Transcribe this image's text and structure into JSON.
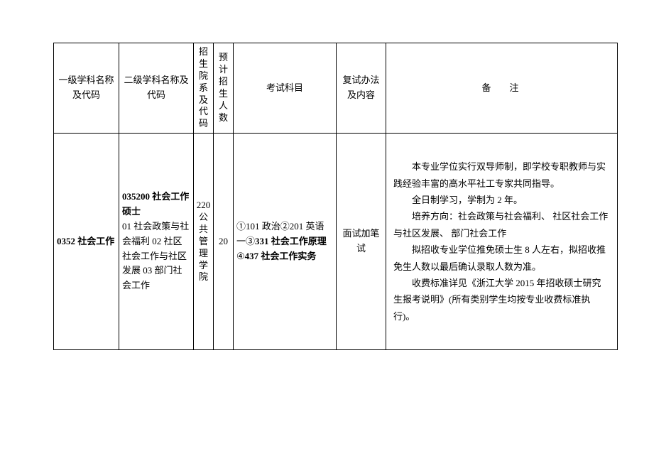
{
  "table": {
    "headers": {
      "col1": "一级学科名称及代码",
      "col2": "二级学科名称及代码",
      "col3": "招生院系及代码",
      "col4": "预计招生人数",
      "col5": "考试科目",
      "col6": "复试办法及内容",
      "col7": "备注"
    },
    "row": {
      "discipline_l1_code": "0352",
      "discipline_l1_name": "社会工作",
      "discipline_l2_code": "035200",
      "discipline_l2_name": "社会工作硕士",
      "discipline_l2_directions": "01 社会政策与社会福利 02 社区社会工作与社区发展 03 部门社会工作",
      "dept_code": "220",
      "dept_name": "公共管理学院",
      "enrollment": "20",
      "exam_prefix": "①101 政治②201 英语一③",
      "exam_bold1": "331 社会工作原理",
      "exam_mid": "④",
      "exam_bold2": "437 社会工作实务",
      "interview": "面试加笔试",
      "notes": {
        "p1": "本专业学位实行双导师制，即学校专职教师与实践经验丰富的高水平社工专家共同指导。",
        "p2": "全日制学习，学制为 2 年。",
        "p3": "培养方向：社会政策与社会福利、 社区社会工作与社区发展、 部门社会工作",
        "p4": "拟招收专业学位推免硕士生 8 人左右，拟招收推免生人数以最后确认录取人数为准。",
        "p5": "收费标准详见《浙江大学 2015 年招收硕士研究生报考说明》(所有类别学生均按专业收费标准执行)。"
      }
    }
  }
}
